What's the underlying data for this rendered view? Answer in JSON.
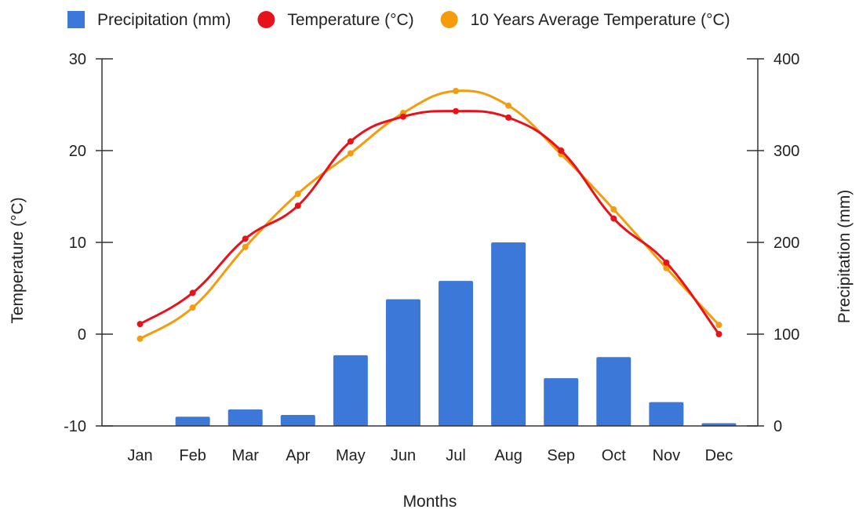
{
  "chart_data": {
    "type": "bar",
    "xlabel": "Months",
    "ylabel_left": "Temperature (°C)",
    "ylabel_right": "Precipitation (mm)",
    "categories": [
      "Jan",
      "Feb",
      "Mar",
      "Apr",
      "May",
      "Jun",
      "Jul",
      "Aug",
      "Sep",
      "Oct",
      "Nov",
      "Dec"
    ],
    "ylim_left": [
      -10,
      30
    ],
    "yticks_left": [
      "30",
      "20",
      "10",
      "0",
      "-10"
    ],
    "ylim_right": [
      0,
      400
    ],
    "yticks_right": [
      "400",
      "300",
      "200",
      "100",
      "0"
    ],
    "legend_position": "top",
    "grid": false,
    "series": [
      {
        "name": "Precipitation (mm)",
        "kind": "bar",
        "axis": "right",
        "color": "#3c78d8",
        "values": [
          0,
          10,
          18,
          12,
          77,
          138,
          158,
          200,
          52,
          75,
          26,
          3
        ]
      },
      {
        "name": "Temperature (°C)",
        "kind": "line",
        "axis": "left",
        "color": "#e8121a",
        "values": [
          1.1,
          4.5,
          10.4,
          14.0,
          21.0,
          23.7,
          24.3,
          23.6,
          20.0,
          12.6,
          7.8,
          0.0
        ]
      },
      {
        "name": "10 Years Average Temperature (°C)",
        "kind": "line",
        "axis": "left",
        "color": "#f59c0d",
        "values": [
          -0.5,
          2.9,
          9.5,
          15.3,
          19.7,
          24.1,
          26.5,
          24.9,
          19.6,
          13.6,
          7.2,
          1.0
        ]
      }
    ]
  }
}
